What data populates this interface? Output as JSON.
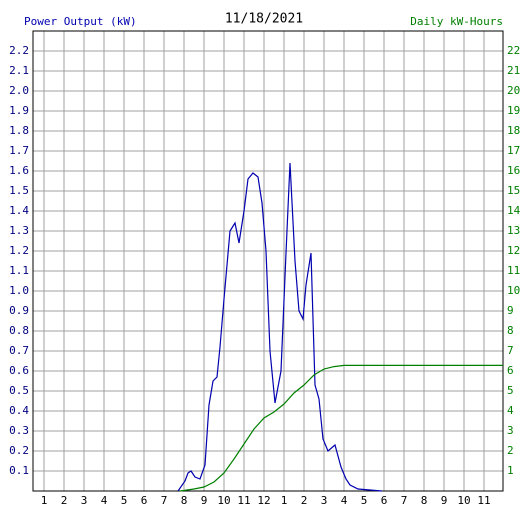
{
  "chart_data": {
    "type": "line",
    "title": "11/18/2021",
    "y_label": "Power Output (kW)",
    "y2_label": "Daily kW-Hours",
    "xlim": [
      0.45,
      23.95
    ],
    "xticks": [
      1,
      2,
      3,
      4,
      5,
      6,
      7,
      8,
      9,
      10,
      11,
      12,
      {
        "value": 13,
        "label": "1"
      },
      {
        "value": 14,
        "label": "2"
      },
      {
        "value": 15,
        "label": "3"
      },
      {
        "value": 16,
        "label": "4"
      },
      {
        "value": 17,
        "label": "5"
      },
      {
        "value": 18,
        "label": "6"
      },
      {
        "value": 19,
        "label": "7"
      },
      {
        "value": 20,
        "label": "8"
      },
      {
        "value": 21,
        "label": "9"
      },
      {
        "value": 22,
        "label": "10"
      },
      {
        "value": 23,
        "label": "11"
      }
    ],
    "ylim": [
      0,
      2.3
    ],
    "yticks": [
      0.1,
      0.2,
      0.3,
      0.4,
      0.5,
      0.6,
      0.7,
      0.8,
      0.9,
      {
        "value": 1,
        "label": "1.0"
      },
      1.1,
      1.2,
      1.3,
      1.4,
      1.5,
      1.6,
      1.7,
      1.8,
      1.9,
      {
        "value": 2,
        "label": "2.0"
      },
      2.1,
      2.2
    ],
    "y2lim": [
      0,
      23
    ],
    "y2ticks": [
      1,
      2,
      3,
      4,
      5,
      6,
      7,
      8,
      9,
      10,
      11,
      12,
      13,
      14,
      15,
      16,
      17,
      18,
      19,
      20,
      21,
      22
    ],
    "grid": true,
    "series": [
      {
        "name": "Power Output (kW)",
        "color": "#0000b0",
        "x": [
          7.7,
          8.05,
          8.2,
          8.35,
          8.55,
          8.8,
          9.05,
          9.25,
          9.45,
          9.65,
          9.8,
          10.0,
          10.3,
          10.55,
          10.75,
          11.0,
          11.2,
          11.45,
          11.7,
          11.9,
          12.1,
          12.3,
          12.55,
          12.85,
          13.1,
          13.3,
          13.55,
          13.75,
          13.95,
          14.1,
          14.35,
          14.55,
          14.75,
          14.95,
          15.2,
          15.55,
          15.85,
          16.1,
          16.3,
          16.7,
          17.9
        ],
        "values": [
          0,
          0.05,
          0.09,
          0.1,
          0.07,
          0.06,
          0.13,
          0.43,
          0.55,
          0.57,
          0.72,
          0.96,
          1.3,
          1.34,
          1.24,
          1.4,
          1.56,
          1.59,
          1.57,
          1.44,
          1.2,
          0.7,
          0.44,
          0.6,
          1.19,
          1.64,
          1.15,
          0.9,
          0.86,
          1.03,
          1.19,
          0.53,
          0.46,
          0.26,
          0.2,
          0.23,
          0.12,
          0.06,
          0.03,
          0.01,
          0
        ]
      },
      {
        "name": "Daily kW-Hours",
        "color": "#008000",
        "axis": "y2",
        "x": [
          7.8,
          8.5,
          9.0,
          9.5,
          10.0,
          10.5,
          11.0,
          11.5,
          12.0,
          12.5,
          13.0,
          13.5,
          14.0,
          14.5,
          15.0,
          15.5,
          16.0,
          23.95
        ],
        "values": [
          0,
          0.1,
          0.2,
          0.45,
          0.9,
          1.6,
          2.35,
          3.1,
          3.65,
          3.95,
          4.35,
          4.9,
          5.3,
          5.8,
          6.1,
          6.22,
          6.28,
          6.28
        ]
      }
    ]
  }
}
